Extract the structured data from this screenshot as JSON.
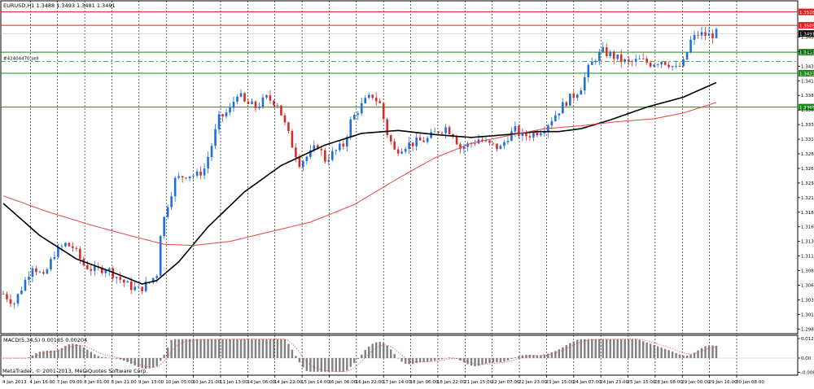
{
  "window": {
    "title": "EURUSD,H1  1.3488 1.3493 1.3481 1.3491",
    "copyright": "MetaTrader, © 2001-2013, MetaQuotes Software Corp."
  },
  "chart_data": {
    "type": "candlestick",
    "symbol": "EURUSD",
    "timeframe": "H1",
    "ylim": [
      1.2977,
      1.3547
    ],
    "y_ticks": [
      "1.3485",
      "1.3460",
      "1.3435",
      "1.3410",
      "1.3385",
      "1.3360",
      "1.3335",
      "1.3310",
      "1.3285",
      "1.3260",
      "1.3235",
      "1.3210",
      "1.3185",
      "1.3160",
      "1.3135",
      "1.3110",
      "1.3085",
      "1.3060",
      "1.3035",
      "1.3010",
      "1.2985"
    ],
    "x_labels": [
      "4 Jan 2013",
      "4 Jan 16:00",
      "7 Jan 09:00",
      "8 Jan 01:00",
      "8 Jan 21:00",
      "9 Jan 13:00",
      "10 Jan 05:00",
      "10 Jan 21:00",
      "11 Jan 13:00",
      "14 Jan 06:00",
      "14 Jan 22:00",
      "15 Jan 14:00",
      "16 Jan 06:00",
      "16 Jan 22:00",
      "17 Jan 14:00",
      "18 Jan 06:00",
      "18 Jan 22:00",
      "21 Jan 15:00",
      "22 Jan 07:00",
      "22 Jan 23:00",
      "23 Jan 15:00",
      "24 Jan 07:00",
      "24 Jan 23:00",
      "25 Jan 15:00",
      "28 Jan 08:00",
      "29 Jan 00:00",
      "29 Jan 16:00",
      "30 Jan 08:00"
    ],
    "horizontal_levels": [
      {
        "value": 1.3528,
        "label": "1.3528",
        "color": "#e31a1c"
      },
      {
        "value": 1.3505,
        "label": "1.3505",
        "color": "#e31a1c"
      },
      {
        "value": 1.3459,
        "label": "1.3459",
        "color": "#1a8c1a"
      },
      {
        "value": 1.3423,
        "label": "1.3423",
        "color": "#1a8c1a"
      },
      {
        "value": 1.3365,
        "label": "1.3365",
        "color": "#1a8c1a"
      }
    ],
    "current_price": {
      "value": 1.3491,
      "label": "1.3491"
    },
    "order_line": {
      "value": 1.3443,
      "label": "#42404470 sell",
      "color": "#1a8c1a"
    },
    "price_anchors": [
      [
        0,
        1.3045
      ],
      [
        3,
        1.303
      ],
      [
        5,
        1.3055
      ],
      [
        8,
        1.3095
      ],
      [
        11,
        1.3072
      ],
      [
        14,
        1.3115
      ],
      [
        17,
        1.313
      ],
      [
        19,
        1.3125
      ],
      [
        22,
        1.3095
      ],
      [
        25,
        1.3085
      ],
      [
        28,
        1.309
      ],
      [
        31,
        1.3075
      ],
      [
        34,
        1.306
      ],
      [
        37,
        1.3052
      ],
      [
        40,
        1.3065
      ],
      [
        42,
        1.308
      ],
      [
        43,
        1.315
      ],
      [
        45,
        1.32
      ],
      [
        47,
        1.324
      ],
      [
        50,
        1.325
      ],
      [
        53,
        1.3248
      ],
      [
        55,
        1.326
      ],
      [
        57,
        1.33
      ],
      [
        59,
        1.3345
      ],
      [
        62,
        1.336
      ],
      [
        64,
        1.339
      ],
      [
        66,
        1.3372
      ],
      [
        69,
        1.3365
      ],
      [
        72,
        1.338
      ],
      [
        75,
        1.3372
      ],
      [
        77,
        1.3335
      ],
      [
        79,
        1.33
      ],
      [
        81,
        1.327
      ],
      [
        84,
        1.3285
      ],
      [
        86,
        1.33
      ],
      [
        88,
        1.3275
      ],
      [
        91,
        1.329
      ],
      [
        93,
        1.33
      ],
      [
        95,
        1.334
      ],
      [
        97,
        1.336
      ],
      [
        99,
        1.3375
      ],
      [
        101,
        1.3385
      ],
      [
        103,
        1.337
      ],
      [
        105,
        1.332
      ],
      [
        107,
        1.329
      ],
      [
        110,
        1.33
      ],
      [
        113,
        1.3305
      ],
      [
        116,
        1.331
      ],
      [
        119,
        1.3325
      ],
      [
        121,
        1.333
      ],
      [
        123,
        1.332
      ],
      [
        125,
        1.3295
      ],
      [
        127,
        1.33
      ],
      [
        130,
        1.331
      ],
      [
        133,
        1.33
      ],
      [
        136,
        1.3295
      ],
      [
        138,
        1.3315
      ],
      [
        140,
        1.3325
      ],
      [
        142,
        1.3315
      ],
      [
        145,
        1.332
      ],
      [
        148,
        1.333
      ],
      [
        150,
        1.3345
      ],
      [
        152,
        1.336
      ],
      [
        154,
        1.3375
      ],
      [
        156,
        1.3385
      ],
      [
        158,
        1.34
      ],
      [
        160,
        1.343
      ],
      [
        162,
        1.345
      ],
      [
        164,
        1.346
      ],
      [
        166,
        1.3455
      ],
      [
        168,
        1.3448
      ],
      [
        171,
        1.344
      ],
      [
        174,
        1.3445
      ],
      [
        177,
        1.344
      ],
      [
        180,
        1.3445
      ],
      [
        182,
        1.344
      ],
      [
        184,
        1.343
      ],
      [
        186,
        1.344
      ],
      [
        188,
        1.3478
      ],
      [
        190,
        1.349
      ],
      [
        193,
        1.3488
      ],
      [
        195,
        1.3491
      ]
    ],
    "series": [
      {
        "kind": "sma",
        "color": "#000000",
        "values": [
          [
            0,
            1.32
          ],
          [
            10,
            1.3145
          ],
          [
            20,
            1.3105
          ],
          [
            30,
            1.3082
          ],
          [
            38,
            1.3062
          ],
          [
            42,
            1.3068
          ],
          [
            48,
            1.31
          ],
          [
            56,
            1.316
          ],
          [
            66,
            1.322
          ],
          [
            76,
            1.3265
          ],
          [
            88,
            1.33
          ],
          [
            98,
            1.332
          ],
          [
            108,
            1.3325
          ],
          [
            118,
            1.3318
          ],
          [
            128,
            1.3313
          ],
          [
            138,
            1.3318
          ],
          [
            146,
            1.3323
          ],
          [
            152,
            1.3323
          ],
          [
            158,
            1.3328
          ],
          [
            166,
            1.3343
          ],
          [
            176,
            1.3365
          ],
          [
            186,
            1.3382
          ],
          [
            195,
            1.3407
          ]
        ]
      },
      {
        "kind": "sma",
        "color": "#e34545",
        "values": [
          [
            0,
            1.3213
          ],
          [
            12,
            1.3186
          ],
          [
            24,
            1.3163
          ],
          [
            34,
            1.3146
          ],
          [
            44,
            1.313
          ],
          [
            52,
            1.3128
          ],
          [
            62,
            1.3135
          ],
          [
            72,
            1.315
          ],
          [
            84,
            1.3168
          ],
          [
            96,
            1.3198
          ],
          [
            108,
            1.3243
          ],
          [
            118,
            1.3278
          ],
          [
            128,
            1.3303
          ],
          [
            138,
            1.3316
          ],
          [
            148,
            1.3328
          ],
          [
            158,
            1.3333
          ],
          [
            168,
            1.334
          ],
          [
            178,
            1.3345
          ],
          [
            186,
            1.3355
          ],
          [
            195,
            1.3373
          ]
        ]
      }
    ],
    "macd": {
      "label": "MACD(5,34,5) 0.00185 0.00204",
      "y_ticks": [
        "0.01212",
        "0.00",
        "-0.00890"
      ],
      "ylim": [
        -0.0089,
        0.01212
      ]
    }
  }
}
